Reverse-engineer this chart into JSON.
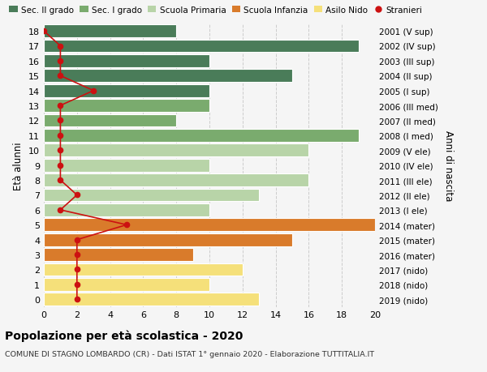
{
  "ages": [
    18,
    17,
    16,
    15,
    14,
    13,
    12,
    11,
    10,
    9,
    8,
    7,
    6,
    5,
    4,
    3,
    2,
    1,
    0
  ],
  "right_labels": [
    "2001 (V sup)",
    "2002 (IV sup)",
    "2003 (III sup)",
    "2004 (II sup)",
    "2005 (I sup)",
    "2006 (III med)",
    "2007 (II med)",
    "2008 (I med)",
    "2009 (V ele)",
    "2010 (IV ele)",
    "2011 (III ele)",
    "2012 (II ele)",
    "2013 (I ele)",
    "2014 (mater)",
    "2015 (mater)",
    "2016 (mater)",
    "2017 (nido)",
    "2018 (nido)",
    "2019 (nido)"
  ],
  "bar_values": [
    8,
    19,
    10,
    15,
    10,
    10,
    8,
    19,
    16,
    10,
    16,
    13,
    10,
    20,
    15,
    9,
    12,
    10,
    13
  ],
  "bar_colors": [
    "#4a7c59",
    "#4a7c59",
    "#4a7c59",
    "#4a7c59",
    "#4a7c59",
    "#7aab6e",
    "#7aab6e",
    "#7aab6e",
    "#b8d4a8",
    "#b8d4a8",
    "#b8d4a8",
    "#b8d4a8",
    "#b8d4a8",
    "#d97b2b",
    "#d97b2b",
    "#d97b2b",
    "#f5e07a",
    "#f5e07a",
    "#f5e07a"
  ],
  "stranieri_values": [
    0,
    1,
    1,
    1,
    3,
    1,
    1,
    1,
    1,
    1,
    1,
    2,
    1,
    5,
    2,
    2,
    2,
    2,
    2
  ],
  "legend_labels": [
    "Sec. II grado",
    "Sec. I grado",
    "Scuola Primaria",
    "Scuola Infanzia",
    "Asilo Nido",
    "Stranieri"
  ],
  "legend_colors": [
    "#4a7c59",
    "#7aab6e",
    "#b8d4a8",
    "#d97b2b",
    "#f5e07a",
    "#cc1111"
  ],
  "title": "Popolazione per età scolastica - 2020",
  "subtitle": "COMUNE DI STAGNO LOMBARDO (CR) - Dati ISTAT 1° gennaio 2020 - Elaborazione TUTTITALIA.IT",
  "xlabel_left": "Età alunni",
  "ylabel_right": "Anni di nascita",
  "xlim": [
    0,
    20
  ],
  "xticks": [
    0,
    2,
    4,
    6,
    8,
    10,
    12,
    14,
    16,
    18,
    20
  ],
  "bg_color": "#f5f5f5",
  "grid_color": "#cccccc"
}
